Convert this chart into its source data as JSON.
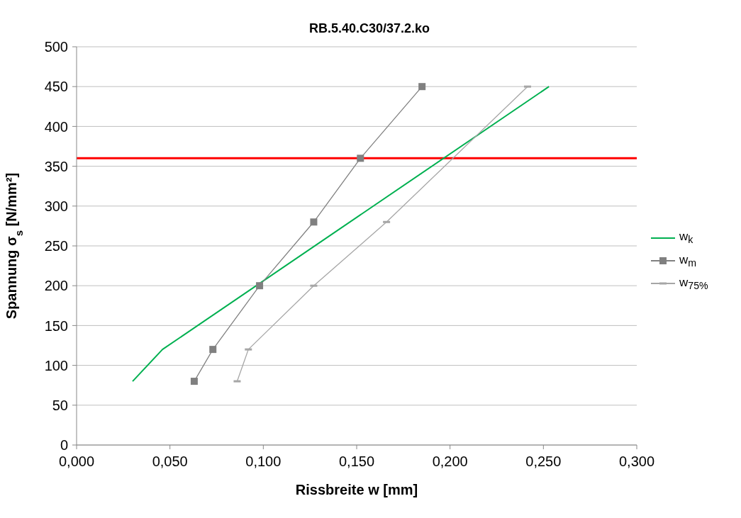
{
  "chart_data": {
    "type": "line",
    "title": "RB.5.40.C30/37.2.ko",
    "xlabel": "Rissbreite w [mm]",
    "ylabel": "Spannung σ$_{s}$  [N/mm²]",
    "xlim": [
      0,
      0.3
    ],
    "xticks": [
      {
        "value": 0,
        "label": "0,000"
      },
      {
        "value": 0.05,
        "label": "0,050"
      },
      {
        "value": 0.1,
        "label": "0,100"
      },
      {
        "value": 0.15,
        "label": "0,150"
      },
      {
        "value": 0.2,
        "label": "0,200"
      },
      {
        "value": 0.25,
        "label": "0,250"
      },
      {
        "value": 0.3,
        "label": "0,300"
      }
    ],
    "ylim": [
      0,
      500
    ],
    "yticks": [
      0,
      50,
      100,
      150,
      200,
      250,
      300,
      350,
      400,
      450,
      500
    ],
    "grid": "y",
    "legend": "right",
    "line_style": "solid",
    "series": [
      {
        "name": "w$_{k}$",
        "color": "#00b050",
        "marker": "none",
        "x": [
          0.03,
          0.046,
          0.253
        ],
        "values": [
          80,
          120,
          450
        ]
      },
      {
        "name": "w$_{m}$",
        "color": "#808080",
        "marker": "square",
        "x": [
          0.063,
          0.073,
          0.098,
          0.127,
          0.152,
          0.185
        ],
        "values": [
          80,
          120,
          200,
          280,
          360,
          450
        ]
      },
      {
        "name": "w$_{75%}$",
        "color": "#a6a6a6",
        "marker": "square",
        "x": [
          0.086,
          0.092,
          0.127,
          0.166,
          0.2415
        ],
        "values": [
          80,
          120,
          200,
          280,
          450
        ]
      }
    ],
    "ref_lines": [
      {
        "axis": "y",
        "value": 360,
        "color": "#ff0000"
      }
    ]
  }
}
